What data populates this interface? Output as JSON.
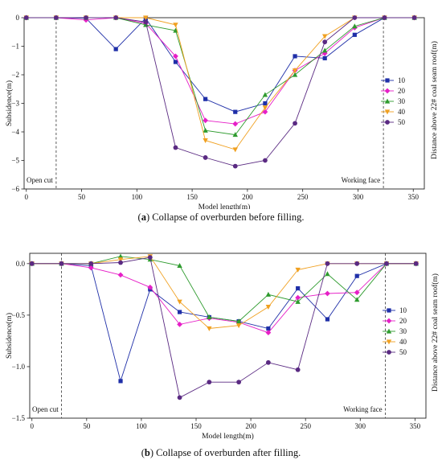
{
  "chart_data": [
    {
      "type": "line",
      "panel": "a",
      "caption_letter": "a",
      "caption_text": "Collapse of overburden before filling.",
      "xlabel": "Model length(m)",
      "ylabel": "Subsidence(m)",
      "right_label": "Distance above 22# coal seam roof(m)",
      "xlim": [
        -2,
        360
      ],
      "ylim": [
        -6,
        0
      ],
      "xticks": [
        0,
        50,
        100,
        150,
        200,
        250,
        300,
        350
      ],
      "yticks": [
        0,
        -1,
        -2,
        -3,
        -4,
        -5,
        -6
      ],
      "ytick_labels": [
        "0",
        "−1",
        "−2",
        "−3",
        "−4",
        "−5",
        "−6"
      ],
      "grid": false,
      "legend_position": "right",
      "annotations": [
        {
          "text": "Open cut",
          "x": 27,
          "side": "left"
        },
        {
          "text": "Working face",
          "x": 323,
          "side": "right"
        }
      ],
      "x": [
        0,
        27,
        54,
        81,
        108,
        135,
        162,
        189,
        216,
        243,
        270,
        297,
        324,
        351
      ],
      "series": [
        {
          "name": "10",
          "color": "#1f2fa8",
          "marker": "square",
          "values": [
            0,
            0,
            -0.02,
            -1.1,
            -0.02,
            -1.55,
            -2.85,
            -3.3,
            -3.0,
            -1.35,
            -1.42,
            -0.6,
            0,
            0
          ]
        },
        {
          "name": "20",
          "color": "#e61fc7",
          "marker": "diamond",
          "values": [
            0,
            0,
            -0.08,
            0,
            -0.2,
            -1.35,
            -3.6,
            -3.72,
            -3.3,
            -1.85,
            -1.25,
            -0.35,
            0,
            0
          ]
        },
        {
          "name": "30",
          "color": "#2e9b2e",
          "marker": "triangle-up",
          "values": [
            0,
            0,
            0,
            0,
            -0.25,
            -0.45,
            -3.95,
            -4.1,
            -2.7,
            -2.0,
            -1.15,
            -0.3,
            0,
            0
          ]
        },
        {
          "name": "40",
          "color": "#f0a020",
          "marker": "triangle-down",
          "values": [
            0,
            0,
            0,
            0,
            0,
            -0.25,
            -4.3,
            -4.62,
            -3.15,
            -1.85,
            -0.65,
            0,
            0,
            0
          ]
        },
        {
          "name": "50",
          "color": "#5a2a82",
          "marker": "circle",
          "values": [
            0,
            0,
            0,
            0,
            -0.15,
            -4.55,
            -4.9,
            -5.2,
            -5.0,
            -3.7,
            -0.85,
            0,
            0,
            0
          ]
        }
      ]
    },
    {
      "type": "line",
      "panel": "b",
      "caption_letter": "b",
      "caption_text": "Collapse of overburden after filling.",
      "xlabel": "Model length(m)",
      "ylabel": "Subsidence(m)",
      "right_label": "Distance above 22# coal seam roof(m)",
      "xlim": [
        -2,
        360
      ],
      "ylim": [
        -1.5,
        0.1
      ],
      "xticks": [
        0,
        50,
        100,
        150,
        200,
        250,
        300,
        350
      ],
      "yticks": [
        0,
        -0.5,
        -1.0,
        -1.5
      ],
      "ytick_labels": [
        "0.0",
        "−0.5",
        "−1.0",
        "−1.5"
      ],
      "grid": false,
      "legend_position": "right",
      "annotations": [
        {
          "text": "Open cut",
          "x": 27,
          "side": "left"
        },
        {
          "text": "Working face",
          "x": 323,
          "side": "right"
        }
      ],
      "x": [
        0,
        27,
        54,
        81,
        108,
        135,
        162,
        189,
        216,
        243,
        270,
        297,
        324,
        351
      ],
      "series": [
        {
          "name": "10",
          "color": "#1f2fa8",
          "marker": "square",
          "values": [
            0,
            0,
            -0.02,
            -1.14,
            -0.25,
            -0.47,
            -0.52,
            -0.56,
            -0.63,
            -0.24,
            -0.54,
            -0.12,
            0,
            0
          ]
        },
        {
          "name": "20",
          "color": "#e61fc7",
          "marker": "diamond",
          "values": [
            0,
            0,
            -0.04,
            -0.11,
            -0.23,
            -0.59,
            -0.53,
            -0.57,
            -0.67,
            -0.33,
            -0.29,
            -0.28,
            0,
            0
          ]
        },
        {
          "name": "30",
          "color": "#2e9b2e",
          "marker": "triangle-up",
          "values": [
            0,
            0,
            0,
            0.07,
            0.04,
            -0.02,
            -0.52,
            -0.56,
            -0.3,
            -0.37,
            -0.1,
            -0.35,
            0,
            0
          ]
        },
        {
          "name": "40",
          "color": "#f0a020",
          "marker": "triangle-down",
          "values": [
            0,
            0,
            0,
            0.04,
            0.07,
            -0.37,
            -0.63,
            -0.6,
            -0.42,
            -0.06,
            0,
            0,
            0,
            0
          ]
        },
        {
          "name": "50",
          "color": "#5a2a82",
          "marker": "circle",
          "values": [
            0,
            0,
            0,
            0.01,
            0.06,
            -1.3,
            -1.15,
            -1.15,
            -0.96,
            -1.03,
            0,
            0,
            0,
            0
          ]
        }
      ]
    }
  ]
}
